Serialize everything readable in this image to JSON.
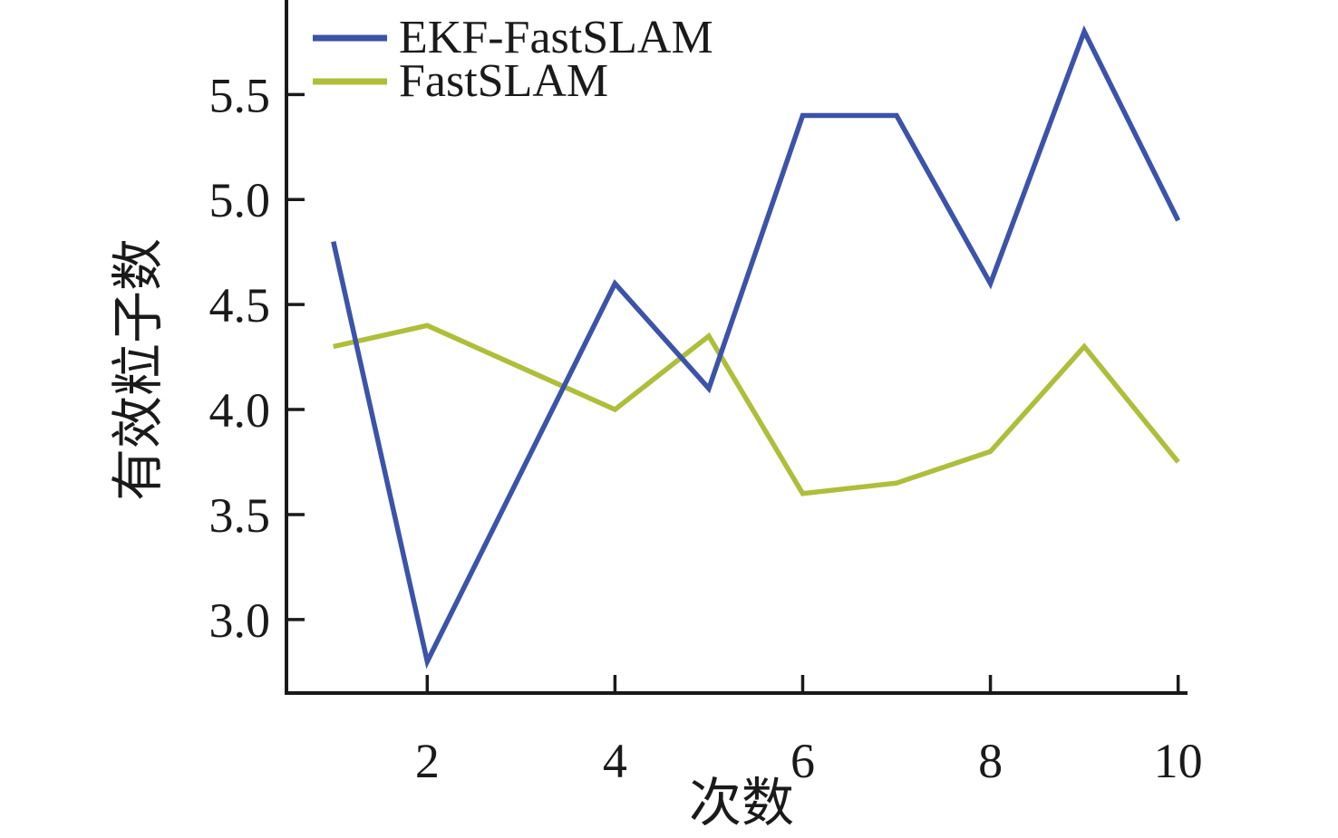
{
  "chart_data": {
    "type": "line",
    "title": "",
    "xlabel": "次数",
    "ylabel": "有效粒子数",
    "x": [
      1,
      2,
      3,
      4,
      5,
      6,
      7,
      8,
      9,
      10
    ],
    "series": [
      {
        "name": "EKF-FastSLAM",
        "color": "#3B53A8",
        "values": [
          4.8,
          2.8,
          3.7,
          4.6,
          4.1,
          5.4,
          5.4,
          4.6,
          5.8,
          4.9
        ]
      },
      {
        "name": "FastSLAM",
        "color": "#AFBE3A",
        "values": [
          4.3,
          4.4,
          4.2,
          4.0,
          4.35,
          3.6,
          3.65,
          3.8,
          4.3,
          3.75
        ]
      }
    ],
    "xticks": [
      "2",
      "4",
      "6",
      "8",
      "10"
    ],
    "yticks": [
      "3.0",
      "3.5",
      "4.0",
      "4.5",
      "5.0",
      "5.5"
    ],
    "xlim": [
      0.5,
      10.1
    ],
    "ylim": [
      2.65,
      5.95
    ],
    "grid": false,
    "legend": {
      "position": "top-left"
    },
    "axis_color": "#1a1a1a",
    "background_color": "#ffffff"
  }
}
